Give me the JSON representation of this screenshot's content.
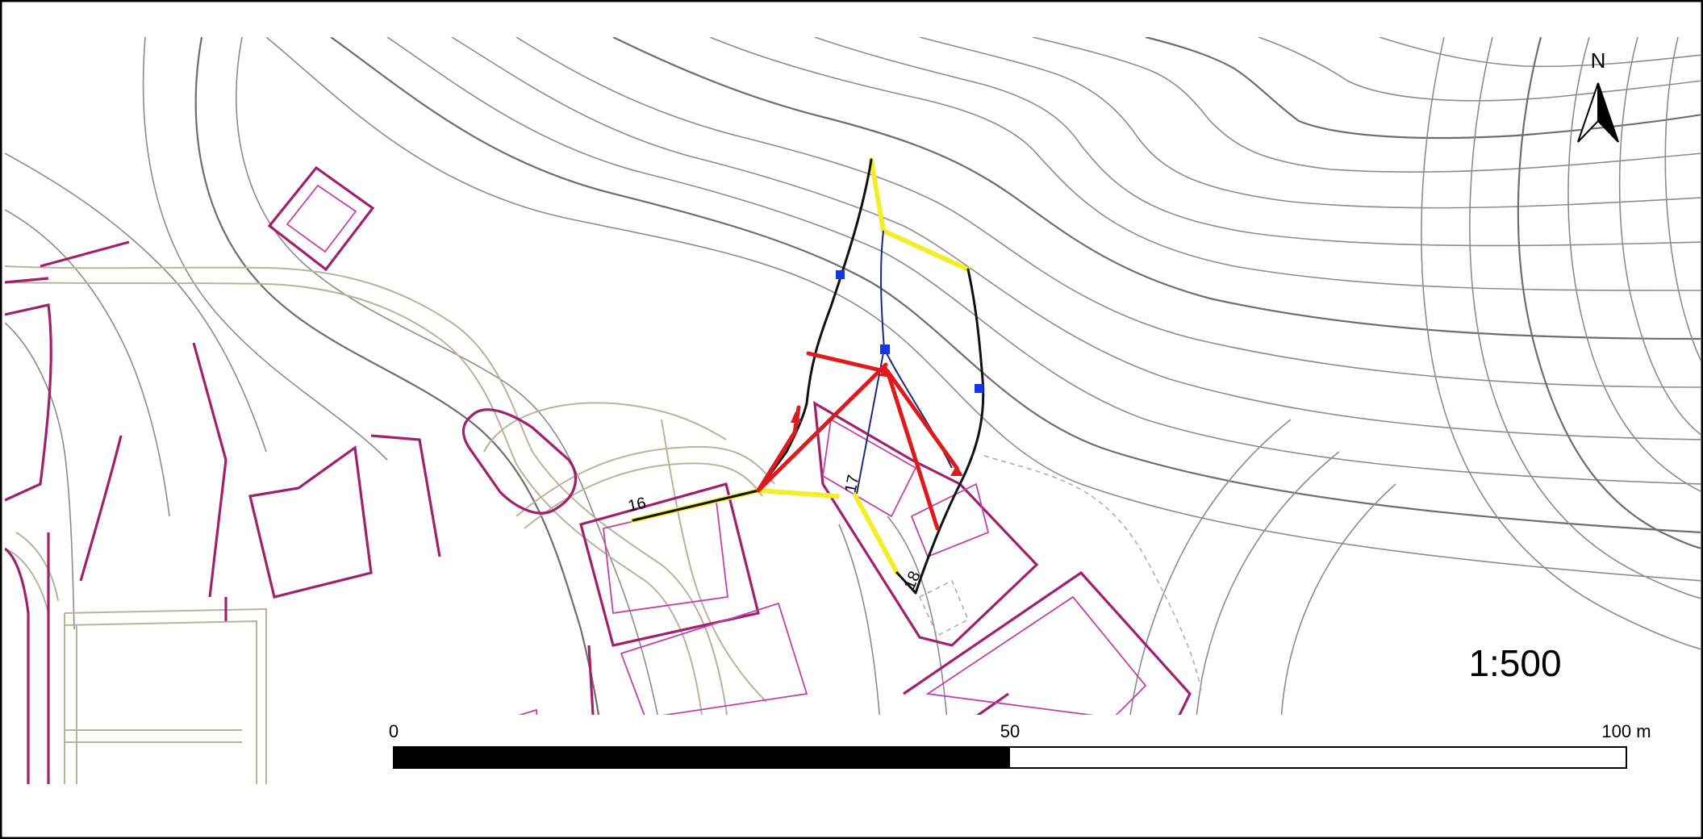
{
  "scale_text": "1:500",
  "north_label": "N",
  "scalebar": {
    "ticks": [
      "0",
      "50",
      "100 m"
    ],
    "max_meters": 100,
    "fill_color": "#000000"
  },
  "line_labels": [
    "16",
    "17",
    "18"
  ],
  "colors": {
    "contour": "#8c8c8c",
    "contour_major": "#6e6e6e",
    "building": "#a0206e",
    "building_thin": "#c040b0",
    "road": "#b8b39a",
    "baseline": "#111111",
    "highlight": "#f2ee2a",
    "measured": "#e0191c",
    "survey": "#1a2a7a",
    "station": "#1437e6"
  },
  "icons": [
    "north-arrow-icon",
    "red-arrowhead-icon",
    "blue-station-icon"
  ]
}
